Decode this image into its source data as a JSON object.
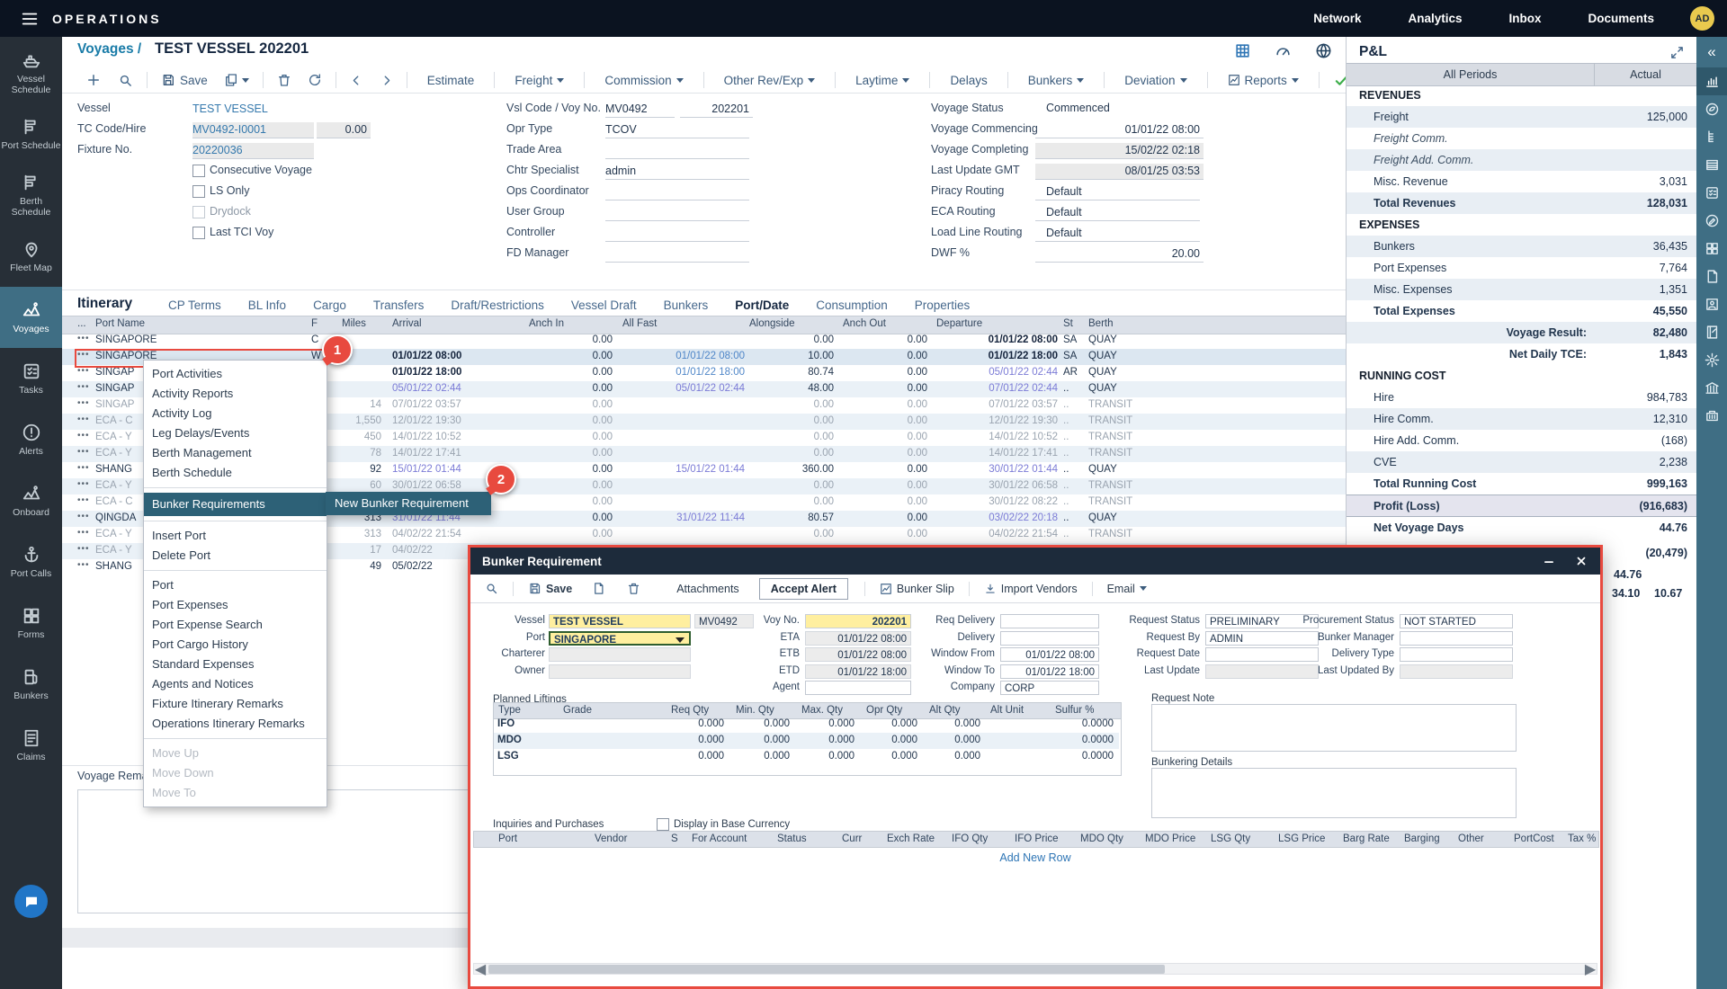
{
  "colors": {
    "accent_red": "#e84a3f",
    "required_yellow": "#ffef9f",
    "menu_highlight": "#2d6177",
    "sidebar_selected": "#3f6e84",
    "link_blue": "#4f86c8",
    "visited_purple": "#7b7bd6",
    "topbar": "#0b1320"
  },
  "topbar": {
    "title": "OPERATIONS",
    "nav": [
      "Network",
      "Analytics",
      "Inbox",
      "Documents"
    ],
    "avatar": "AD"
  },
  "sidebar": {
    "items": [
      {
        "id": "vessel-schedule",
        "icon": "ship",
        "label": "Vessel Schedule"
      },
      {
        "id": "port-schedule",
        "icon": "list-flag",
        "label": "Port Schedule"
      },
      {
        "id": "berth-schedule",
        "icon": "list-flag",
        "label": "Berth Schedule"
      },
      {
        "id": "fleet-map",
        "icon": "map-pin",
        "label": "Fleet Map"
      },
      {
        "id": "voyages",
        "icon": "mountain-route",
        "label": "Voyages",
        "selected": true
      },
      {
        "id": "tasks",
        "icon": "task-list",
        "label": "Tasks"
      },
      {
        "id": "alerts",
        "icon": "alert-circle",
        "label": "Alerts"
      },
      {
        "id": "onboard",
        "icon": "mountain-route",
        "label": "Onboard"
      },
      {
        "id": "port-calls",
        "icon": "anchor",
        "label": "Port Calls"
      },
      {
        "id": "forms",
        "icon": "pages",
        "label": "Forms"
      },
      {
        "id": "bunkers",
        "icon": "fuel-pump",
        "label": "Bunkers"
      },
      {
        "id": "claims",
        "icon": "document-lines",
        "label": "Claims"
      }
    ]
  },
  "breadcrumb": {
    "section": "Voyages /",
    "title": "TEST VESSEL 202201"
  },
  "toolbar": {
    "save_label": "Save",
    "menus": [
      {
        "label": "Estimate"
      },
      {
        "label": "Freight",
        "caret": true
      },
      {
        "label": "Commission",
        "caret": true
      },
      {
        "label": "Other Rev/Exp",
        "caret": true
      },
      {
        "label": "Laytime",
        "caret": true
      },
      {
        "label": "Delays"
      },
      {
        "label": "Bunkers",
        "caret": true
      },
      {
        "label": "Deviation",
        "caret": true
      },
      {
        "label": "Reports",
        "caret": true,
        "chart": true
      }
    ]
  },
  "voyage_form": {
    "left": {
      "rows": [
        {
          "label": "Vessel",
          "value": "TEST VESSEL",
          "style": "plainblue"
        },
        {
          "label": "TC Code/Hire",
          "value": "MV0492-I0001",
          "value2": "0.00",
          "style": "gray"
        },
        {
          "label": "Fixture No.",
          "value": "20220036",
          "style": "gray"
        }
      ],
      "checkboxes": [
        {
          "label": "Consecutive Voyage"
        },
        {
          "label": "LS Only"
        },
        {
          "label": "Drydock",
          "disabled": true
        },
        {
          "label": "Last TCI Voy"
        }
      ]
    },
    "middle": {
      "rows": [
        {
          "label": "Vsl Code / Voy No.",
          "value": "MV0492",
          "value2": "202201"
        },
        {
          "label": "Opr Type",
          "value": "TCOV"
        },
        {
          "label": "Trade Area",
          "value": ""
        },
        {
          "label": "Chtr Specialist",
          "value": "admin"
        },
        {
          "label": "Ops Coordinator",
          "value": ""
        },
        {
          "label": "User Group",
          "value": ""
        },
        {
          "label": "Controller",
          "value": ""
        },
        {
          "label": "FD Manager",
          "value": ""
        }
      ]
    },
    "right": {
      "rows": [
        {
          "label": "Voyage Status",
          "value": "Commenced",
          "style": "status"
        },
        {
          "label": "Voyage Commencing",
          "value": "01/01/22 08:00",
          "align": "right"
        },
        {
          "label": "Voyage Completing",
          "value": "15/02/22 02:18",
          "style": "gray",
          "align": "right"
        },
        {
          "label": "Last Update GMT",
          "value": "08/01/25 03:53",
          "style": "gray",
          "align": "right"
        },
        {
          "label": "Piracy Routing",
          "value": "Default",
          "split": true
        },
        {
          "label": "ECA Routing",
          "value": "Default",
          "split": true
        },
        {
          "label": "Load Line Routing",
          "value": "Default",
          "split": true
        },
        {
          "label": "DWF %",
          "value": "20.00",
          "align": "right"
        }
      ]
    }
  },
  "itinerary": {
    "title": "Itinerary",
    "tabs": [
      "CP Terms",
      "BL Info",
      "Cargo",
      "Transfers",
      "Draft/Restrictions",
      "Vessel Draft",
      "Bunkers",
      "Port/Date",
      "Consumption",
      "Properties"
    ],
    "active_tab": "Port/Date",
    "columns": [
      "...",
      "Port Name",
      "F",
      "Miles",
      "Arrival",
      "Anch In",
      "All Fast",
      "Alongside",
      "Anch Out",
      "Departure",
      "St",
      "Berth"
    ],
    "rows": [
      {
        "p": "SINGAPORE",
        "f": "C",
        "mi": "",
        "ar": "",
        "ai": "0.00",
        "af": "",
        "al": "0.00",
        "ao": "0.00",
        "de": "01/01/22 08:00",
        "dc": "b",
        "st": "SA",
        "be": "QUAY"
      },
      {
        "p": "SINGAPORE",
        "f": "W",
        "mi": "",
        "ar": "01/01/22 08:00",
        "ac": "b",
        "ai": "0.00",
        "af": "01/01/22 08:00",
        "fc": "l",
        "al": "10.00",
        "ao": "0.00",
        "de": "01/01/22 18:00",
        "dc": "b",
        "st": "SA",
        "be": "QUAY",
        "sel": true
      },
      {
        "p": "SINGAP",
        "f": "",
        "mi": "",
        "ar": "01/01/22 18:00",
        "ac": "b",
        "ai": "0.00",
        "af": "01/01/22 18:00",
        "fc": "l",
        "al": "80.74",
        "ao": "0.00",
        "de": "05/01/22 02:44",
        "dc": "v",
        "st": "AR",
        "be": "QUAY"
      },
      {
        "p": "SINGAP",
        "f": "",
        "mi": "",
        "ar": "05/01/22 02:44",
        "ac": "v",
        "ai": "0.00",
        "af": "05/01/22 02:44",
        "fc": "v",
        "al": "48.00",
        "ao": "0.00",
        "de": "07/01/22 02:44",
        "dc": "v",
        "st": "..",
        "be": "QUAY"
      },
      {
        "p": "SINGAP",
        "g": true,
        "mi": "14",
        "ar": "07/01/22 03:57",
        "ai": "0.00",
        "af": "",
        "al": "0.00",
        "ao": "0.00",
        "de": "07/01/22 03:57",
        "st": "..",
        "be": "TRANSIT"
      },
      {
        "p": "ECA - C",
        "g": true,
        "mi": "1,550",
        "ar": "12/01/22 19:30",
        "ai": "0.00",
        "af": "",
        "al": "0.00",
        "ao": "0.00",
        "de": "12/01/22 19:30",
        "st": "..",
        "be": "TRANSIT"
      },
      {
        "p": "ECA - Y",
        "g": true,
        "mi": "450",
        "ar": "14/01/22 10:52",
        "ai": "0.00",
        "af": "",
        "al": "0.00",
        "ao": "0.00",
        "de": "14/01/22 10:52",
        "st": "..",
        "be": "TRANSIT"
      },
      {
        "p": "ECA - Y",
        "g": true,
        "mi": "78",
        "ar": "14/01/22 17:41",
        "ai": "0.00",
        "af": "",
        "al": "0.00",
        "ao": "0.00",
        "de": "14/01/22 17:41",
        "st": "..",
        "be": "TRANSIT"
      },
      {
        "p": "SHANG",
        "mi": "92",
        "ar": "15/01/22 01:44",
        "ac": "v",
        "ai": "0.00",
        "af": "15/01/22 01:44",
        "fc": "v",
        "al": "360.00",
        "ao": "0.00",
        "de": "30/01/22 01:44",
        "dc": "v",
        "st": "..",
        "be": "QUAY"
      },
      {
        "p": "ECA - Y",
        "g": true,
        "mi": "60",
        "ar": "30/01/22 06:58",
        "ai": "0.00",
        "af": "",
        "al": "0.00",
        "ao": "0.00",
        "de": "30/01/22 06:58",
        "st": "..",
        "be": "TRANSIT"
      },
      {
        "p": "ECA - C",
        "g": true,
        "mi": "",
        "ar": "30/01/22 08:22",
        "ai": "0.00",
        "af": "",
        "al": "0.00",
        "ao": "0.00",
        "de": "30/01/22 08:22",
        "st": "..",
        "be": "TRANSIT"
      },
      {
        "p": "QINGDA",
        "mi": "313",
        "ar": "31/01/22 11:44",
        "ac": "v",
        "ai": "0.00",
        "af": "31/01/22 11:44",
        "fc": "v",
        "al": "80.57",
        "ao": "0.00",
        "de": "03/02/22 20:18",
        "dc": "v",
        "st": "..",
        "be": "QUAY"
      },
      {
        "p": "ECA - Y",
        "g": true,
        "mi": "313",
        "ar": "04/02/22 21:54",
        "ai": "0.00",
        "af": "",
        "al": "0.00",
        "ao": "0.00",
        "de": "04/02/22 21:54",
        "st": "..",
        "be": "TRANSIT"
      },
      {
        "p": "ECA - Y",
        "g": true,
        "mi": "17",
        "ar": "04/02/22",
        "ai": "0.00",
        "af": "",
        "al": "0.00",
        "ao": "0.00",
        "de": "",
        "st": "",
        "be": ""
      },
      {
        "p": "SHANG",
        "mi": "49",
        "ar": "05/02/22",
        "ai": "0.00",
        "af": "",
        "al": "0.00",
        "ao": "0.00",
        "de": "",
        "st": "",
        "be": ""
      }
    ]
  },
  "context_menu": {
    "items": [
      {
        "label": "Port Activities"
      },
      {
        "label": "Activity Reports"
      },
      {
        "label": "Activity Log"
      },
      {
        "label": "Leg Delays/Events"
      },
      {
        "label": "Berth Management"
      },
      {
        "label": "Berth Schedule"
      },
      {
        "sep": true
      },
      {
        "label": "Bunker Requirements",
        "highlight": true
      },
      {
        "sep": true
      },
      {
        "label": "Insert Port"
      },
      {
        "label": "Delete Port"
      },
      {
        "sep": true
      },
      {
        "label": "Port"
      },
      {
        "label": "Port Expenses"
      },
      {
        "label": "Port Expense Search"
      },
      {
        "label": "Port Cargo History"
      },
      {
        "label": "Standard Expenses"
      },
      {
        "label": "Agents and Notices"
      },
      {
        "label": "Fixture Itinerary Remarks"
      },
      {
        "label": "Operations Itinerary Remarks"
      },
      {
        "sep": true
      },
      {
        "label": "Move Up",
        "disabled": true
      },
      {
        "label": "Move Down",
        "disabled": true
      },
      {
        "label": "Move To",
        "disabled": true
      }
    ],
    "submenu_label": "New Bunker Requirement"
  },
  "annotations": {
    "step1": "1",
    "step2": "2"
  },
  "voyage_remarks_label": "Voyage Remarks",
  "pnl": {
    "title": "P&L",
    "columns": [
      "All Periods",
      "Actual"
    ],
    "rows": [
      {
        "label": "REVENUES",
        "value": "",
        "cls": "sec"
      },
      {
        "label": "Freight",
        "value": "125,000",
        "cls": "t"
      },
      {
        "label": "Freight Comm.",
        "value": "",
        "cls": "i"
      },
      {
        "label": "Freight Add. Comm.",
        "value": "",
        "cls": "i t"
      },
      {
        "label": "Misc. Revenue",
        "value": "3,031",
        "cls": ""
      },
      {
        "label": "Total Revenues",
        "value": "128,031",
        "cls": "b t"
      },
      {
        "label": "EXPENSES",
        "value": "",
        "cls": "sec"
      },
      {
        "label": "Bunkers",
        "value": "36,435",
        "cls": "t"
      },
      {
        "label": "Port Expenses",
        "value": "7,764",
        "cls": ""
      },
      {
        "label": "Misc. Expenses",
        "value": "1,351",
        "cls": "t"
      },
      {
        "label": "Total Expenses",
        "value": "45,550",
        "cls": "b"
      },
      {
        "label": "Voyage Result:",
        "value": "82,480",
        "cls": "b t r"
      },
      {
        "label": "Net Daily TCE:",
        "value": "1,843",
        "cls": "b r"
      },
      {
        "label": "RUNNING COST",
        "value": "",
        "cls": "sec"
      },
      {
        "label": "Hire",
        "value": "984,783",
        "cls": ""
      },
      {
        "label": "Hire Comm.",
        "value": "12,310",
        "cls": "t"
      },
      {
        "label": "Hire Add. Comm.",
        "value": "(168)",
        "cls": ""
      },
      {
        "label": "CVE",
        "value": "2,238",
        "cls": "t"
      },
      {
        "label": "Total Running Cost",
        "value": "999,163",
        "cls": "b"
      },
      {
        "label": "Profit (Loss)",
        "value": "(916,683)",
        "cls": "b lav"
      },
      {
        "label": "Net Voyage Days",
        "value": "44.76",
        "cls": "b bt"
      }
    ],
    "partial_values": [
      "(20,479)",
      "44.76",
      "34.10",
      "10.67"
    ]
  },
  "modal": {
    "title": "Bunker Requirement",
    "toolbar": {
      "save": "Save",
      "attachments": "Attachments",
      "accept_alert": "Accept Alert",
      "bunker_slip": "Bunker Slip",
      "import_vendors": "Import Vendors",
      "email": "Email"
    },
    "field_columns": [
      {
        "fields": [
          {
            "label": "Vessel",
            "value": "TEST VESSEL",
            "style": "yellow",
            "extra": "MV0492"
          },
          {
            "label": "Port",
            "value": "SINGAPORE",
            "style": "ydrop"
          },
          {
            "label": "Charterer",
            "value": "",
            "style": "gray"
          },
          {
            "label": "Owner",
            "value": "",
            "style": "gray"
          }
        ]
      },
      {
        "fields": [
          {
            "label": "Voy No.",
            "value": "202201",
            "style": "yellow",
            "align": "right"
          },
          {
            "label": "ETA",
            "value": "01/01/22 08:00",
            "style": "gray",
            "align": "right"
          },
          {
            "label": "ETB",
            "value": "01/01/22 08:00",
            "style": "gray",
            "align": "right"
          },
          {
            "label": "ETD",
            "value": "01/01/22 18:00",
            "style": "gray",
            "align": "right"
          },
          {
            "label": "Agent",
            "value": "",
            "style": "white"
          }
        ]
      },
      {
        "fields": [
          {
            "label": "Req Delivery",
            "value": "",
            "style": "white"
          },
          {
            "label": "Delivery",
            "value": "",
            "style": "white"
          },
          {
            "label": "Window From",
            "value": "01/01/22 08:00",
            "style": "white",
            "align": "right"
          },
          {
            "label": "Window To",
            "value": "01/01/22 18:00",
            "style": "white",
            "align": "right"
          },
          {
            "label": "Company",
            "value": "CORP",
            "style": "white"
          }
        ]
      },
      {
        "fields": [
          {
            "label": "Request Status",
            "value": "PRELIMINARY",
            "style": "white"
          },
          {
            "label": "Request By",
            "value": "ADMIN",
            "style": "white"
          },
          {
            "label": "Request Date",
            "value": "",
            "style": "white"
          },
          {
            "label": "Last Update",
            "value": "",
            "style": "gray"
          }
        ]
      },
      {
        "fields": [
          {
            "label": "Procurement Status",
            "value": "NOT STARTED",
            "style": "white"
          },
          {
            "label": "Bunker Manager",
            "value": "",
            "style": "white"
          },
          {
            "label": "Delivery Type",
            "value": "",
            "style": "white"
          },
          {
            "label": "Last Updated By",
            "value": "",
            "style": "gray"
          }
        ]
      }
    ],
    "planned_liftings": {
      "title": "Planned Liftings",
      "columns": [
        "Type",
        "Grade",
        "Req Qty",
        "Min. Qty",
        "Max. Qty",
        "Opr Qty",
        "Alt Qty",
        "Alt Unit",
        "Sulfur %"
      ],
      "rows": [
        {
          "type": "IFO",
          "values": [
            "0.000",
            "0.000",
            "0.000",
            "0.000",
            "0.000",
            "",
            "0.0000"
          ]
        },
        {
          "type": "MDO",
          "values": [
            "0.000",
            "0.000",
            "0.000",
            "0.000",
            "0.000",
            "",
            "0.0000"
          ]
        },
        {
          "type": "LSG",
          "values": [
            "0.000",
            "0.000",
            "0.000",
            "0.000",
            "0.000",
            "",
            "0.0000"
          ]
        }
      ]
    },
    "request_note_label": "Request Note",
    "bunkering_details_label": "Bunkering Details",
    "inquiries": {
      "title": "Inquiries and Purchases",
      "checkbox_label": "Display in Base Currency",
      "columns": [
        "Port",
        "Vendor",
        "S",
        "For Account",
        "Status",
        "Curr",
        "Exch Rate",
        "IFO Qty",
        "IFO Price",
        "MDO Qty",
        "MDO Price",
        "LSG Qty",
        "LSG Price",
        "Barg Rate",
        "Barging",
        "Other",
        "PortCost",
        "Tax %"
      ],
      "add_row_label": "Add New Row"
    }
  }
}
